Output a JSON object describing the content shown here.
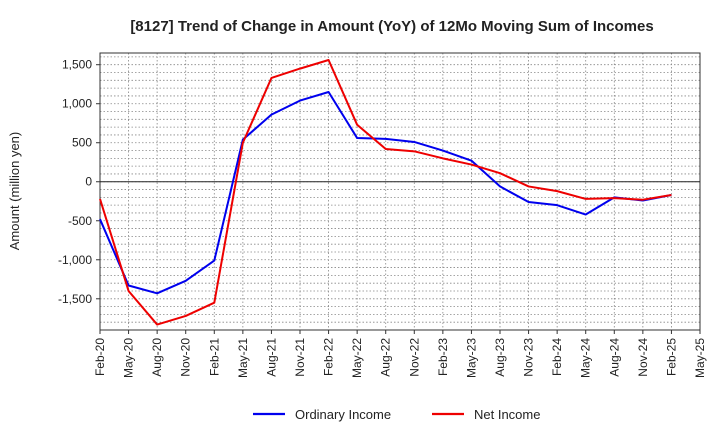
{
  "chart_data": {
    "type": "line",
    "title": "[8127]  Trend of Change in Amount (YoY) of 12Mo Moving Sum of Incomes",
    "xlabel": "",
    "ylabel": "Amount (million yen)",
    "ylim": [
      -1900,
      1650
    ],
    "yticks": [
      1500,
      1000,
      500,
      0,
      -500,
      -1000,
      -1500
    ],
    "ytick_labels": [
      "1,500",
      "1,000",
      "500",
      "0",
      "-500",
      "-1,000",
      "-1,500"
    ],
    "x_tick_labels": [
      "Feb-20",
      "May-20",
      "Aug-20",
      "Nov-20",
      "Feb-21",
      "May-21",
      "Aug-21",
      "Nov-21",
      "Feb-22",
      "May-22",
      "Aug-22",
      "Nov-22",
      "Feb-23",
      "May-23",
      "Aug-23",
      "Nov-23",
      "Feb-24",
      "May-24",
      "Aug-24",
      "Nov-24",
      "Feb-25",
      "May-25"
    ],
    "grid": true,
    "legend_position": "bottom-center",
    "series": [
      {
        "name": "Ordinary Income",
        "color": "#0000ee",
        "values": [
          -480,
          -1330,
          -1430,
          -1270,
          -1010,
          540,
          860,
          1040,
          1150,
          560,
          550,
          510,
          400,
          270,
          -60,
          -260,
          -300,
          -420,
          -200,
          -240,
          -170
        ]
      },
      {
        "name": "Net Income",
        "color": "#ee0000",
        "values": [
          -220,
          -1400,
          -1830,
          -1720,
          -1550,
          500,
          1330,
          1450,
          1560,
          730,
          420,
          390,
          300,
          220,
          110,
          -60,
          -120,
          -220,
          -210,
          -230,
          -170
        ]
      }
    ]
  }
}
